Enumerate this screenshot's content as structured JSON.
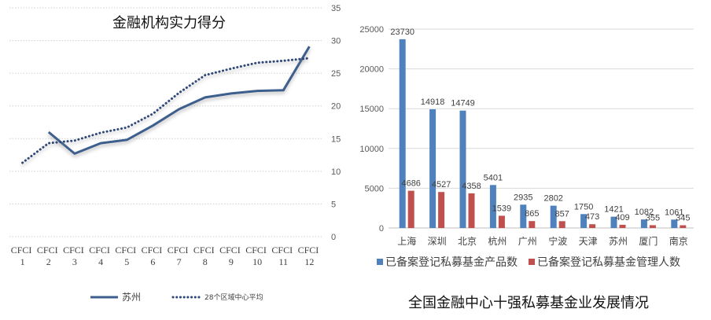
{
  "chart_data": [
    {
      "type": "line",
      "title": "金融机构实力得分",
      "categories": [
        "CFCI 1",
        "CFCI 2",
        "CFCI 3",
        "CFCI 4",
        "CFCI 5",
        "CFCI 6",
        "CFCI 7",
        "CFCI 8",
        "CFCI 9",
        "CFCI 10",
        "CFCI 11",
        "CFCI 12"
      ],
      "y_axis": {
        "position": "right",
        "ylim": [
          0,
          35
        ],
        "ticks": [
          0,
          5,
          10,
          15,
          20,
          25,
          30,
          35
        ]
      },
      "grid": true,
      "legend": "bottom",
      "series": [
        {
          "name": "苏州",
          "line_style": "solid",
          "color": "#3e5f8d",
          "values": [
            null,
            16.0,
            12.7,
            14.3,
            14.8,
            17.0,
            19.5,
            21.3,
            21.9,
            22.3,
            22.4,
            29.1
          ]
        },
        {
          "name": "28个区域中心平均",
          "line_style": "dotted",
          "color": "#2d4878",
          "values": [
            11.3,
            14.3,
            14.7,
            15.9,
            16.7,
            18.8,
            22.0,
            24.7,
            25.7,
            26.6,
            26.9,
            27.3
          ]
        }
      ]
    },
    {
      "type": "bar",
      "title": "全国金融中心十强私募基金业发展情况",
      "title_position": "bottom",
      "categories": [
        "上海",
        "深圳",
        "北京",
        "杭州",
        "广州",
        "宁波",
        "天津",
        "苏州",
        "厦门",
        "南京"
      ],
      "y_axis": {
        "position": "left",
        "ylim": [
          0,
          25000
        ],
        "ticks": [
          0,
          5000,
          10000,
          15000,
          20000,
          25000
        ]
      },
      "grid": true,
      "legend": "bottom",
      "data_labels": true,
      "series": [
        {
          "name": "已备案登记私募基金产品数",
          "color": "#4f81bd",
          "values": [
            23730,
            14918,
            14749,
            5401,
            2935,
            2802,
            1750,
            1421,
            1082,
            1061
          ]
        },
        {
          "name": "已备案登记私募基金管理人数",
          "color": "#c0504d",
          "values": [
            4686,
            4527,
            4358,
            1539,
            865,
            857,
            473,
            409,
            355,
            345
          ]
        }
      ]
    }
  ]
}
